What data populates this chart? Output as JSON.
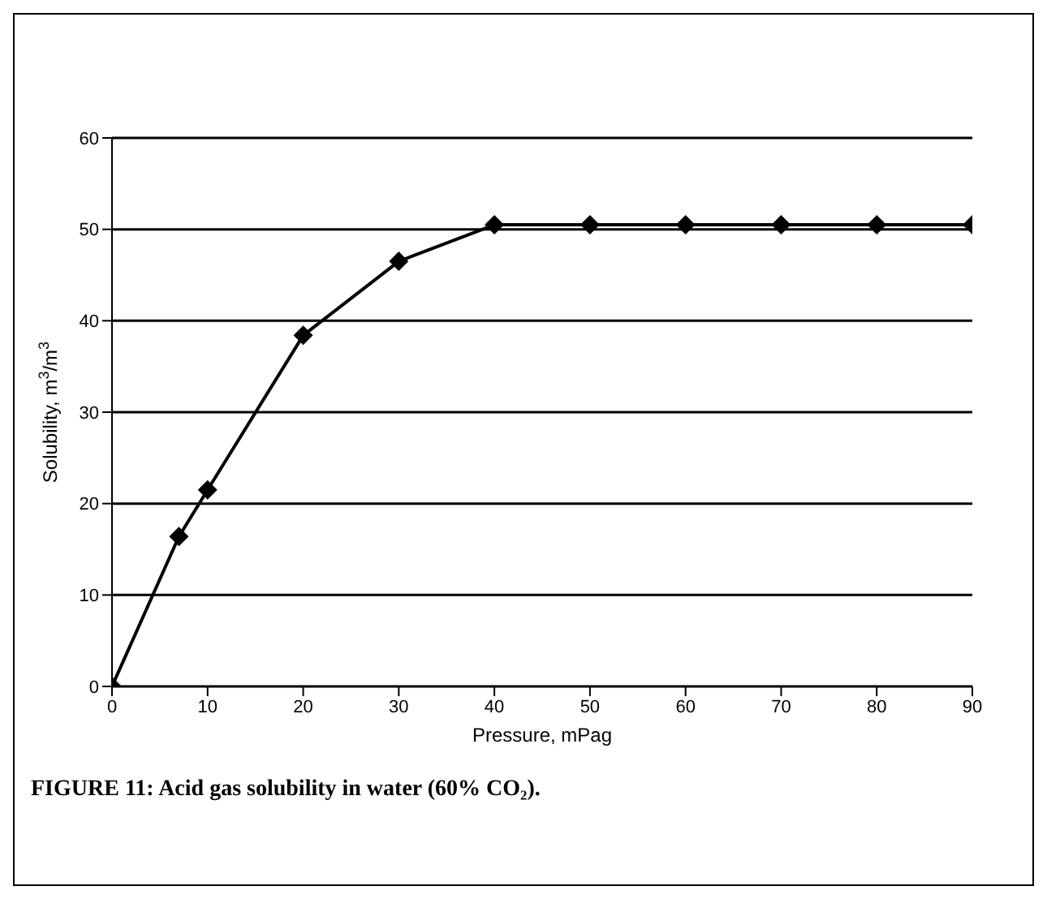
{
  "chart_data": {
    "type": "line",
    "xlabel": "Pressure, mPag",
    "ylabel": "Solubility, m$^{3}$/m$^{3}$",
    "x": [
      0,
      7,
      10,
      20,
      30,
      40,
      50,
      60,
      70,
      80,
      90
    ],
    "series": [
      {
        "color": "#000000",
        "values": [
          0,
          16.4,
          21.5,
          38.4,
          46.5,
          50.5,
          50.5,
          50.5,
          50.5,
          50.5,
          50.5
        ]
      }
    ],
    "xlim": [
      0,
      90
    ],
    "xticks": [
      0,
      10,
      20,
      30,
      40,
      50,
      60,
      70,
      80,
      90
    ],
    "ylim": [
      0,
      60
    ],
    "yticks": [
      0,
      10,
      20,
      30,
      40,
      50,
      60
    ],
    "grid": "y",
    "marker": "diamond",
    "line_style": "solid",
    "legend": false,
    "annotations": [
      "FIGURE 11: Acid gas solubility in water (60% CO₂)."
    ]
  }
}
